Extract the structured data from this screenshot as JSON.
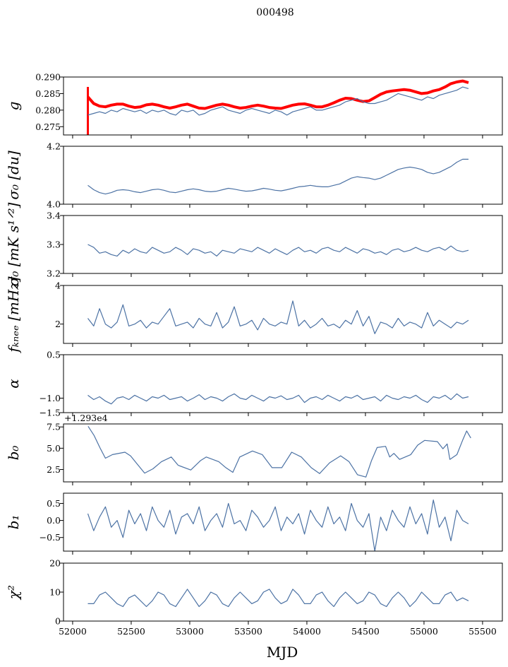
{
  "chart_data": {
    "type": "line",
    "title": "000498",
    "xlabel": "MJD",
    "xlim": [
      51922,
      55669
    ],
    "xticks": [
      52000,
      52500,
      53000,
      53500,
      54000,
      54500,
      55000,
      55500
    ],
    "xtick_labels": [
      "52000",
      "52500",
      "53000",
      "53500",
      "54000",
      "54500",
      "55000",
      "55500"
    ],
    "line_color": "#4c72a4",
    "panels": [
      {
        "ylabel": "g",
        "ylim": [
          0.2725,
          0.29
        ],
        "yticks": [
          0.275,
          0.28,
          0.285,
          0.29
        ],
        "ytick_labels": [
          "0.275",
          "0.280",
          "0.285",
          "0.290"
        ],
        "series": [
          {
            "name": "model",
            "color": "#ff0000",
            "width": 4,
            "x_start": 52130,
            "x_step": 50,
            "spike": [
              0.2725,
              0.287
            ],
            "values": [
              0.284,
              0.282,
              0.2812,
              0.281,
              0.2815,
              0.2818,
              0.2818,
              0.2812,
              0.2808,
              0.281,
              0.2816,
              0.2818,
              0.2815,
              0.281,
              0.2806,
              0.281,
              0.2815,
              0.2818,
              0.2812,
              0.2806,
              0.2805,
              0.281,
              0.2815,
              0.2818,
              0.2815,
              0.281,
              0.2806,
              0.2808,
              0.2812,
              0.2815,
              0.2812,
              0.2808,
              0.2806,
              0.2805,
              0.281,
              0.2815,
              0.2818,
              0.2819,
              0.2815,
              0.281,
              0.281,
              0.2815,
              0.2822,
              0.283,
              0.2836,
              0.2835,
              0.283,
              0.2826,
              0.2828,
              0.2838,
              0.2848,
              0.2855,
              0.2858,
              0.286,
              0.2862,
              0.286,
              0.2855,
              0.285,
              0.2852,
              0.2858,
              0.2862,
              0.287,
              0.288,
              0.2885,
              0.2888,
              0.2883
            ]
          },
          {
            "name": "data",
            "color": "#4c72a4",
            "width": 1.2,
            "x_start": 52130,
            "x_step": 50,
            "values": [
              0.2785,
              0.279,
              0.2795,
              0.279,
              0.28,
              0.2795,
              0.2805,
              0.28,
              0.2795,
              0.28,
              0.279,
              0.28,
              0.2795,
              0.28,
              0.279,
              0.2785,
              0.28,
              0.2795,
              0.28,
              0.2785,
              0.279,
              0.28,
              0.2805,
              0.281,
              0.28,
              0.2795,
              0.279,
              0.28,
              0.2805,
              0.28,
              0.2795,
              0.279,
              0.28,
              0.2795,
              0.2785,
              0.2795,
              0.28,
              0.2805,
              0.281,
              0.28,
              0.28,
              0.2805,
              0.281,
              0.2815,
              0.2825,
              0.283,
              0.2835,
              0.2825,
              0.282,
              0.282,
              0.2825,
              0.283,
              0.284,
              0.285,
              0.2845,
              0.284,
              0.2835,
              0.283,
              0.284,
              0.2835,
              0.2845,
              0.285,
              0.2855,
              0.286,
              0.287,
              0.2865
            ]
          }
        ]
      },
      {
        "ylabel": "σ₀ [du]",
        "ylim": [
          4.0,
          4.2
        ],
        "yticks": [
          4.0,
          4.2
        ],
        "ytick_labels": [
          "4.0",
          "4.2"
        ],
        "series": [
          {
            "name": "data",
            "color": "#4c72a4",
            "width": 1.2,
            "x_start": 52130,
            "x_step": 50,
            "values": [
              4.065,
              4.05,
              4.04,
              4.035,
              4.04,
              4.048,
              4.05,
              4.048,
              4.043,
              4.04,
              4.045,
              4.05,
              4.052,
              4.048,
              4.042,
              4.04,
              4.045,
              4.05,
              4.053,
              4.05,
              4.045,
              4.043,
              4.045,
              4.05,
              4.055,
              4.052,
              4.048,
              4.045,
              4.046,
              4.05,
              4.055,
              4.052,
              4.048,
              4.046,
              4.05,
              4.055,
              4.06,
              4.062,
              4.065,
              4.062,
              4.06,
              4.06,
              4.065,
              4.07,
              4.08,
              4.09,
              4.095,
              4.092,
              4.09,
              4.085,
              4.09,
              4.1,
              4.11,
              4.12,
              4.125,
              4.128,
              4.125,
              4.12,
              4.11,
              4.105,
              4.11,
              4.12,
              4.13,
              4.145,
              4.155,
              4.155
            ]
          }
        ]
      },
      {
        "ylabel": "σ₀ [mK s¹ᐟ²]",
        "ylim": [
          3.2,
          3.4
        ],
        "yticks": [
          3.2,
          3.3,
          3.4
        ],
        "ytick_labels": [
          "3.2",
          "3.3",
          "3.4"
        ],
        "series": [
          {
            "name": "data",
            "color": "#4c72a4",
            "width": 1.2,
            "x_start": 52130,
            "x_step": 50,
            "values": [
              3.3,
              3.29,
              3.27,
              3.275,
              3.265,
              3.26,
              3.28,
              3.27,
              3.285,
              3.275,
              3.27,
              3.29,
              3.28,
              3.27,
              3.275,
              3.29,
              3.28,
              3.265,
              3.285,
              3.28,
              3.27,
              3.275,
              3.26,
              3.28,
              3.275,
              3.27,
              3.285,
              3.28,
              3.275,
              3.29,
              3.28,
              3.27,
              3.285,
              3.275,
              3.265,
              3.28,
              3.29,
              3.275,
              3.28,
              3.27,
              3.285,
              3.29,
              3.28,
              3.275,
              3.29,
              3.28,
              3.27,
              3.285,
              3.28,
              3.27,
              3.275,
              3.265,
              3.28,
              3.285,
              3.275,
              3.28,
              3.29,
              3.28,
              3.275,
              3.285,
              3.29,
              3.28,
              3.295,
              3.28,
              3.275,
              3.28
            ]
          }
        ]
      },
      {
        "ylabel": "fₖₙₑₑ [mHz]",
        "ylim": [
          1,
          4
        ],
        "yticks": [
          2,
          4
        ],
        "ytick_labels": [
          "2",
          "4"
        ],
        "series": [
          {
            "name": "data",
            "color": "#4c72a4",
            "width": 1.2,
            "x_start": 52130,
            "x_step": 50,
            "values": [
              2.3,
              1.9,
              2.8,
              2.0,
              1.8,
              2.1,
              3.0,
              1.9,
              2.0,
              2.2,
              1.8,
              2.1,
              2.0,
              2.4,
              2.8,
              1.9,
              2.0,
              2.1,
              1.8,
              2.3,
              2.0,
              1.9,
              2.6,
              1.8,
              2.1,
              2.9,
              1.9,
              2.0,
              2.2,
              1.7,
              2.3,
              2.0,
              1.9,
              2.1,
              2.0,
              3.2,
              1.9,
              2.2,
              1.8,
              2.0,
              2.3,
              1.9,
              2.0,
              1.8,
              2.2,
              2.0,
              2.7,
              1.9,
              2.4,
              1.5,
              2.1,
              2.0,
              1.8,
              2.3,
              1.9,
              2.1,
              2.0,
              1.8,
              2.6,
              1.9,
              2.2,
              2.0,
              1.8,
              2.1,
              2.0,
              2.2
            ]
          }
        ]
      },
      {
        "ylabel": "α",
        "ylim": [
          -1.5,
          0.5
        ],
        "yticks": [
          -1.5,
          -1.0,
          0.5
        ],
        "ytick_labels": [
          "−1.5",
          "−1.0",
          "0.5"
        ],
        "series": [
          {
            "name": "data",
            "color": "#4c72a4",
            "width": 1.2,
            "x_start": 52130,
            "x_step": 50,
            "values": [
              -0.9,
              -1.05,
              -0.95,
              -1.1,
              -1.2,
              -1.0,
              -0.95,
              -1.05,
              -0.9,
              -1.0,
              -1.1,
              -0.95,
              -1.0,
              -0.9,
              -1.05,
              -1.0,
              -0.95,
              -1.1,
              -1.0,
              -0.88,
              -1.05,
              -0.95,
              -1.0,
              -1.1,
              -0.95,
              -0.85,
              -1.0,
              -1.05,
              -0.9,
              -1.0,
              -1.1,
              -0.95,
              -1.0,
              -0.92,
              -1.05,
              -1.0,
              -0.9,
              -1.15,
              -1.0,
              -0.95,
              -1.05,
              -0.9,
              -1.0,
              -1.1,
              -0.95,
              -1.0,
              -0.9,
              -1.05,
              -1.0,
              -0.95,
              -1.1,
              -0.9,
              -1.0,
              -1.05,
              -0.95,
              -1.0,
              -0.9,
              -1.05,
              -1.15,
              -0.95,
              -1.0,
              -0.9,
              -1.05,
              -0.85,
              -1.0,
              -0.95
            ]
          }
        ]
      },
      {
        "ylabel": "b₀",
        "ylim": [
          1.05,
          7.85
        ],
        "yticks": [
          2.5,
          5.0,
          7.5
        ],
        "ytick_labels": [
          "2.5",
          "5.0",
          "7.5"
        ],
        "offset_text": "+1.293e4",
        "series": [
          {
            "name": "data",
            "color": "#4c72a4",
            "width": 1.2,
            "x": [
              52132,
              52184,
              52232,
              52280,
              52340,
              52447,
              52495,
              52543,
              52615,
              52686,
              52758,
              52842,
              52901,
              53009,
              53093,
              53141,
              53248,
              53308,
              53368,
              53427,
              53535,
              53619,
              53703,
              53786,
              53870,
              53953,
              54037,
              54109,
              54193,
              54288,
              54360,
              54432,
              54504,
              54552,
              54600,
              54672,
              54707,
              54743,
              54791,
              54887,
              54946,
              55006,
              55114,
              55162,
              55198,
              55221,
              55281,
              55329,
              55364,
              55400
            ],
            "values": [
              7.58,
              6.47,
              5.08,
              3.83,
              4.25,
              4.53,
              4.1,
              3.28,
              2.08,
              2.58,
              3.42,
              3.97,
              3.0,
              2.44,
              3.56,
              3.97,
              3.42,
              2.72,
              2.17,
              3.97,
              4.67,
              4.25,
              2.72,
              2.72,
              4.53,
              3.97,
              2.72,
              2.03,
              3.28,
              4.11,
              3.42,
              1.89,
              1.61,
              3.56,
              5.08,
              5.22,
              3.97,
              4.39,
              3.69,
              4.25,
              5.36,
              5.92,
              5.78,
              4.94,
              5.5,
              3.69,
              4.25,
              5.92,
              7.03,
              6.2
            ]
          }
        ]
      },
      {
        "ylabel": "b₁",
        "ylim": [
          -0.9,
          0.8
        ],
        "yticks": [
          -0.5,
          0.0,
          0.5
        ],
        "ytick_labels": [
          "−0.5",
          "0.0",
          "0.5"
        ],
        "series": [
          {
            "name": "data",
            "color": "#4c72a4",
            "width": 1.2,
            "x_start": 52130,
            "x_step": 50,
            "values": [
              0.2,
              -0.3,
              0.1,
              0.4,
              -0.2,
              0.0,
              -0.5,
              0.3,
              -0.1,
              0.2,
              -0.3,
              0.4,
              0.0,
              -0.2,
              0.3,
              -0.4,
              0.1,
              0.2,
              -0.1,
              0.4,
              -0.3,
              0.0,
              0.2,
              -0.2,
              0.5,
              -0.1,
              0.0,
              -0.3,
              0.3,
              0.1,
              -0.2,
              0.0,
              0.4,
              -0.3,
              0.1,
              -0.1,
              0.2,
              -0.4,
              0.3,
              0.0,
              -0.2,
              0.4,
              -0.1,
              0.1,
              -0.3,
              0.5,
              0.0,
              -0.2,
              0.2,
              -0.9,
              0.1,
              -0.3,
              0.3,
              0.0,
              -0.2,
              0.4,
              -0.1,
              0.2,
              -0.4,
              0.6,
              -0.2,
              0.1,
              -0.6,
              0.3,
              0.0,
              -0.1
            ]
          }
        ]
      },
      {
        "ylabel": "χ²",
        "ylim": [
          0,
          20
        ],
        "yticks": [
          0,
          10,
          20
        ],
        "ytick_labels": [
          "0",
          "10",
          "20"
        ],
        "series": [
          {
            "name": "data",
            "color": "#4c72a4",
            "width": 1.2,
            "x_start": 52130,
            "x_step": 50,
            "values": [
              6,
              6,
              9,
              10,
              8,
              6,
              5,
              8,
              9,
              7,
              5,
              7,
              10,
              9,
              6,
              5,
              8,
              11,
              8,
              5,
              7,
              10,
              9,
              6,
              5,
              8,
              10,
              8,
              6,
              7,
              10,
              11,
              8,
              6,
              7,
              11,
              9,
              6,
              6,
              9,
              10,
              7,
              5,
              8,
              10,
              8,
              6,
              7,
              10,
              9,
              6,
              5,
              8,
              10,
              8,
              5,
              7,
              10,
              8,
              6,
              6,
              9,
              10,
              7,
              8,
              7
            ]
          }
        ]
      }
    ]
  }
}
